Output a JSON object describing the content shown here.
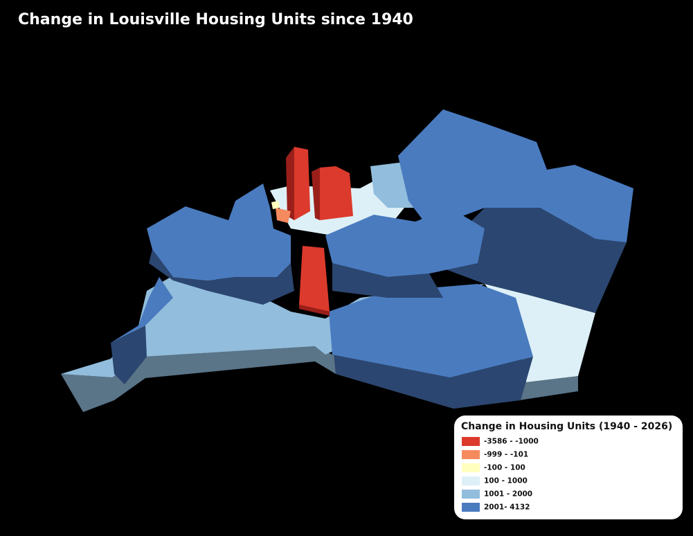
{
  "title": "Change in Louisville Housing Units since 1940",
  "legend": {
    "title": "Change in Housing Units (1940 - 2026)",
    "items": [
      {
        "label": "-3586 - -1000",
        "color": "#dc3a2c"
      },
      {
        "label": "-999 - -101",
        "color": "#f58a5e"
      },
      {
        "label": "-100 - 100",
        "color": "#ffffbf"
      },
      {
        "label": "100 - 1000",
        "color": "#ddf0f7"
      },
      {
        "label": "1001 - 2000",
        "color": "#92bddc"
      },
      {
        "label": "2001- 4132",
        "color": "#4a7bbf"
      }
    ]
  }
}
